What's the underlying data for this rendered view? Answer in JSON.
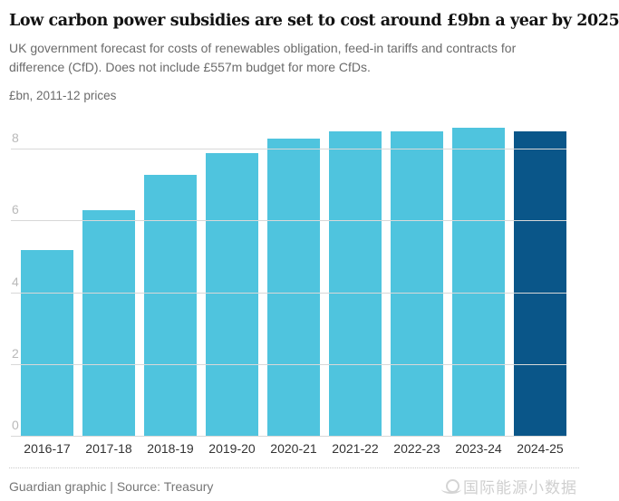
{
  "header": {
    "title": "Low carbon power subsidies are set to cost around £9bn a year by 2025",
    "subtitle": "UK government forecast for costs of renewables obligation, feed-in tariffs and contracts for difference (CfD). Does not include £557m budget for more CfDs.",
    "units_label": "£bn, 2011-12 prices"
  },
  "chart_data": {
    "type": "bar",
    "categories": [
      "2016-17",
      "2017-18",
      "2018-19",
      "2019-20",
      "2020-21",
      "2021-22",
      "2022-23",
      "2023-24",
      "2024-25"
    ],
    "values": [
      5.2,
      6.3,
      7.3,
      7.9,
      8.3,
      8.5,
      8.5,
      8.6,
      8.5
    ],
    "highlight_index": 8,
    "bar_color": "#4fc4de",
    "highlight_color": "#0a5689",
    "gridline_color": "#d8d8d8",
    "axis_label_color": "#b9b9b9",
    "yticks": [
      0,
      2,
      4,
      6,
      8
    ],
    "ylim": [
      0,
      9.14
    ],
    "xlabel": "",
    "ylabel": "£bn, 2011-12 prices",
    "grid": "horizontal",
    "legend": "none",
    "title": "Low carbon power subsidies are set to cost around £9bn a year by 2025"
  },
  "footer": {
    "credit": "Guardian graphic | Source: Treasury",
    "watermark": "国际能源小数据"
  }
}
